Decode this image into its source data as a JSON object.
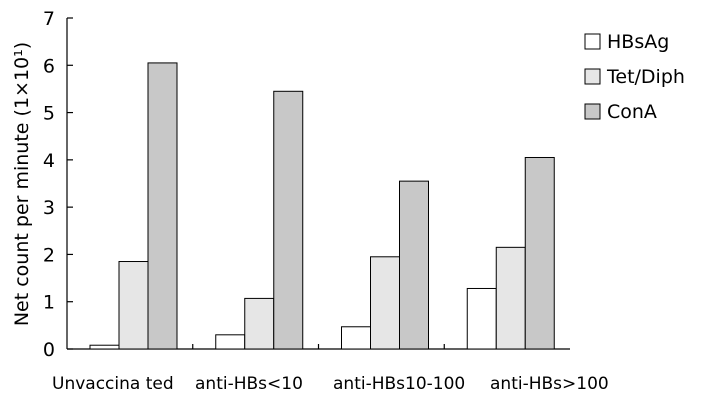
{
  "chart_data": {
    "type": "bar",
    "ylabel": "Net count per minute (1×10¹)",
    "ylim": [
      0,
      7
    ],
    "yticks": [
      "0",
      "1",
      "2",
      "3",
      "4",
      "5",
      "6",
      "7"
    ],
    "categories": [
      "Unvaccina ted",
      "anti-HBs<10",
      "anti-HBs10-100",
      "anti-HBs>100"
    ],
    "series": [
      {
        "name": "HBsAg",
        "values": [
          0.08,
          0.3,
          0.47,
          1.28
        ],
        "color": "#ffffff"
      },
      {
        "name": "Tet/Diph",
        "values": [
          1.85,
          1.07,
          1.95,
          2.15
        ],
        "color": "#e6e6e6"
      },
      {
        "name": "ConA",
        "values": [
          6.05,
          5.45,
          3.55,
          4.05
        ],
        "color": "#c8c8c8"
      }
    ],
    "legend": "top-right",
    "grid": false
  }
}
